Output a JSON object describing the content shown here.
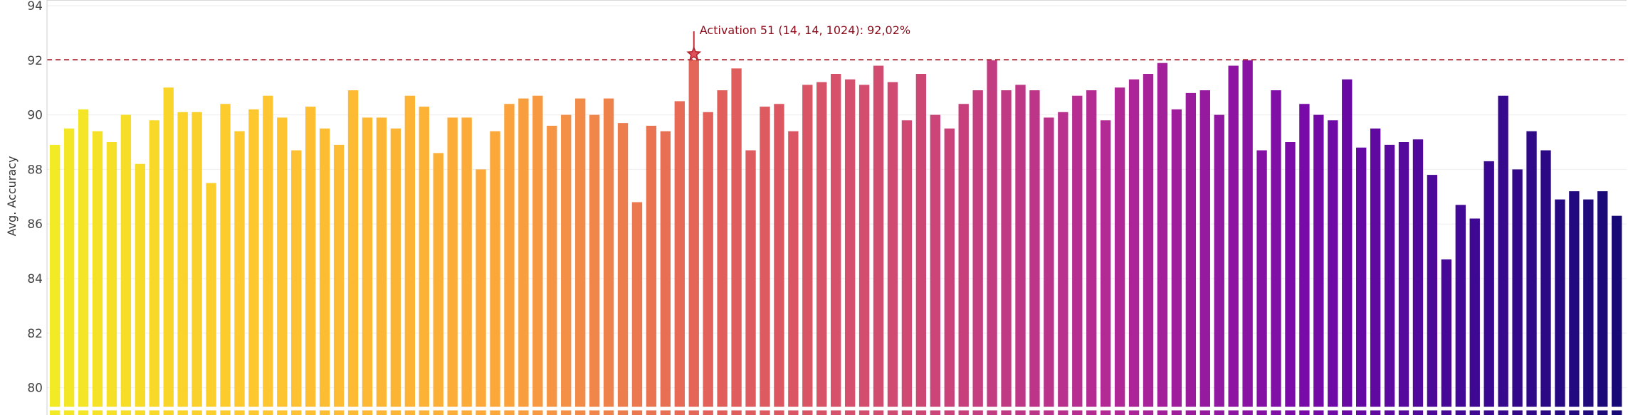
{
  "chart_data": {
    "type": "bar",
    "title": "",
    "xlabel": "",
    "ylabel": "Avg. Accuracy",
    "ylim": [
      79,
      94
    ],
    "yticks": [
      80,
      82,
      84,
      86,
      88,
      90,
      92,
      94
    ],
    "grid": true,
    "reference_line": {
      "value": 92.02,
      "color": "#a31e2a",
      "style": "dashed"
    },
    "highlight_index": 45,
    "annotation": {
      "text": "Activation 51 (14, 14, 1024): 92,02%",
      "bar_index": 45,
      "value": 92.02,
      "marker": "star"
    },
    "colors": {
      "start": "#f2ea24",
      "mid": "#de5a5a",
      "end": "#1a0a7a"
    },
    "values": [
      88.9,
      89.5,
      90.2,
      89.4,
      89.0,
      90.0,
      88.2,
      89.8,
      91.0,
      90.1,
      90.1,
      87.5,
      90.4,
      89.4,
      90.2,
      90.7,
      89.9,
      88.7,
      90.3,
      89.5,
      88.9,
      90.9,
      89.9,
      89.9,
      89.5,
      90.7,
      90.3,
      88.6,
      89.9,
      89.9,
      88.0,
      89.4,
      90.4,
      90.6,
      90.7,
      89.6,
      90.0,
      90.6,
      90.0,
      90.6,
      89.7,
      86.8,
      89.6,
      89.4,
      90.5,
      92.02,
      90.1,
      90.9,
      91.7,
      88.7,
      90.3,
      90.4,
      89.4,
      91.1,
      91.2,
      91.5,
      91.3,
      91.1,
      91.8,
      91.2,
      89.8,
      91.5,
      90.0,
      89.5,
      90.4,
      90.9,
      92.0,
      90.9,
      91.1,
      90.9,
      89.9,
      90.1,
      90.7,
      90.9,
      89.8,
      91.0,
      91.3,
      91.5,
      91.9,
      90.2,
      90.8,
      90.9,
      90.0,
      91.8,
      92.0,
      88.7,
      90.9,
      89.0,
      90.4,
      90.0,
      89.8,
      91.3,
      88.8,
      89.5,
      88.9,
      89.0,
      89.1,
      87.8,
      84.7,
      86.7,
      86.2,
      88.3,
      90.7,
      88.0,
      89.4,
      88.7,
      86.9,
      87.2,
      86.9,
      87.2,
      86.3
    ]
  }
}
